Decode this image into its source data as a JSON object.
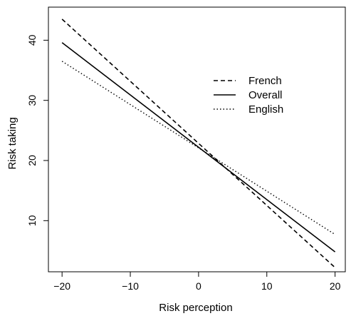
{
  "chart_data": {
    "type": "line",
    "title": "",
    "xlabel": "Risk perception",
    "ylabel": "Risk taking",
    "xlim": [
      -22,
      21.5
    ],
    "ylim": [
      1.5,
      45.5
    ],
    "xticks": [
      -20,
      -10,
      0,
      10,
      20
    ],
    "xtick_labels": [
      "−20",
      "−10",
      "0",
      "10",
      "20"
    ],
    "yticks": [
      10,
      20,
      30,
      40
    ],
    "ytick_labels": [
      "10",
      "20",
      "30",
      "40"
    ],
    "grid": false,
    "legend_position": "upper-right",
    "series": [
      {
        "name": "French",
        "style": "dashed",
        "color": "#000000",
        "x": [
          -20,
          20
        ],
        "y": [
          43.5,
          2.2
        ]
      },
      {
        "name": "Overall",
        "style": "solid",
        "color": "#000000",
        "x": [
          -20,
          20
        ],
        "y": [
          39.6,
          4.8
        ]
      },
      {
        "name": "English",
        "style": "dotted",
        "color": "#000000",
        "x": [
          -20,
          20
        ],
        "y": [
          36.5,
          7.7
        ]
      }
    ]
  }
}
